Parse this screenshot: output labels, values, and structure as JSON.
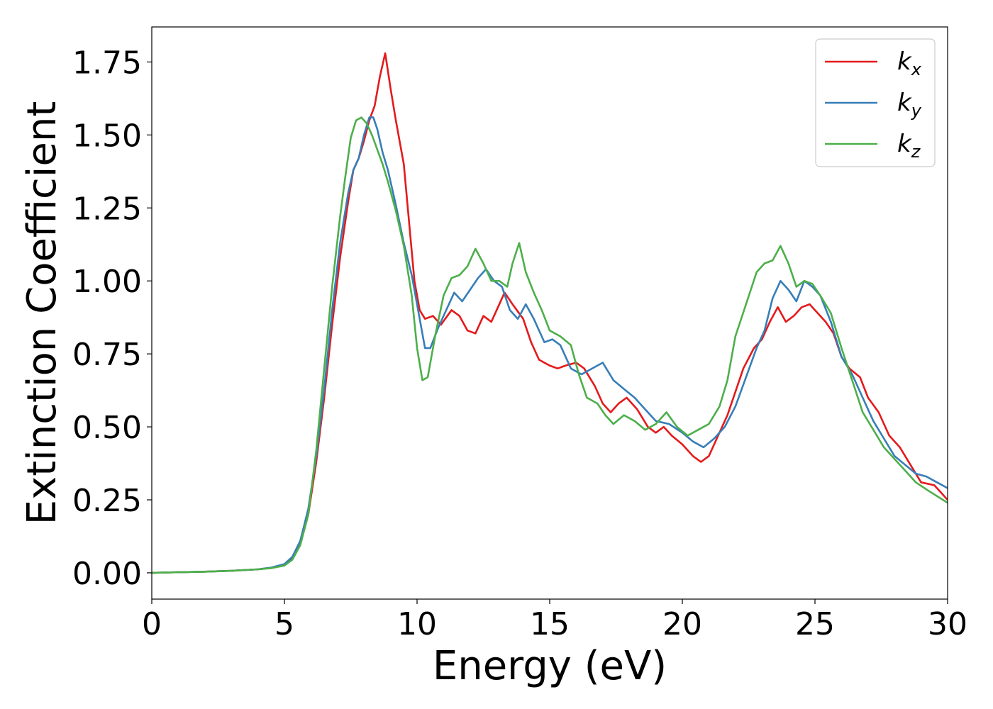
{
  "chart_data": {
    "type": "line",
    "title": "",
    "xlabel": "Energy (eV)",
    "ylabel": "Extinction Coefficient",
    "xlim": [
      0,
      30
    ],
    "ylim": [
      -0.09,
      1.87
    ],
    "xticks": [
      "0",
      "5",
      "10",
      "15",
      "20",
      "25",
      "30"
    ],
    "yticks": [
      "0.00",
      "0.25",
      "0.50",
      "0.75",
      "1.00",
      "1.25",
      "1.50",
      "1.75"
    ],
    "grid": false,
    "legend_position": "top-right",
    "series": [
      {
        "name": "k",
        "subscript": "x",
        "color": "#e41a1c",
        "points": [
          [
            0,
            0.0
          ],
          [
            1,
            0.002
          ],
          [
            2,
            0.004
          ],
          [
            3,
            0.007
          ],
          [
            4,
            0.012
          ],
          [
            4.5,
            0.017
          ],
          [
            5,
            0.028
          ],
          [
            5.3,
            0.05
          ],
          [
            5.6,
            0.1
          ],
          [
            5.9,
            0.2
          ],
          [
            6.2,
            0.38
          ],
          [
            6.5,
            0.6
          ],
          [
            6.8,
            0.85
          ],
          [
            7.1,
            1.08
          ],
          [
            7.4,
            1.27
          ],
          [
            7.6,
            1.38
          ],
          [
            7.8,
            1.42
          ],
          [
            8.0,
            1.48
          ],
          [
            8.2,
            1.55
          ],
          [
            8.4,
            1.6
          ],
          [
            8.6,
            1.7
          ],
          [
            8.8,
            1.78
          ],
          [
            9.0,
            1.66
          ],
          [
            9.2,
            1.55
          ],
          [
            9.5,
            1.4
          ],
          [
            9.7,
            1.2
          ],
          [
            9.9,
            1.0
          ],
          [
            10.1,
            0.9
          ],
          [
            10.3,
            0.87
          ],
          [
            10.6,
            0.88
          ],
          [
            10.9,
            0.85
          ],
          [
            11.3,
            0.9
          ],
          [
            11.6,
            0.88
          ],
          [
            11.9,
            0.83
          ],
          [
            12.2,
            0.82
          ],
          [
            12.5,
            0.88
          ],
          [
            12.8,
            0.86
          ],
          [
            13.0,
            0.9
          ],
          [
            13.3,
            0.96
          ],
          [
            13.6,
            0.92
          ],
          [
            14.0,
            0.87
          ],
          [
            14.3,
            0.79
          ],
          [
            14.6,
            0.73
          ],
          [
            15.0,
            0.71
          ],
          [
            15.3,
            0.7
          ],
          [
            15.6,
            0.71
          ],
          [
            16.0,
            0.72
          ],
          [
            16.3,
            0.7
          ],
          [
            16.7,
            0.64
          ],
          [
            17.0,
            0.58
          ],
          [
            17.3,
            0.55
          ],
          [
            17.6,
            0.58
          ],
          [
            17.9,
            0.6
          ],
          [
            18.3,
            0.56
          ],
          [
            18.7,
            0.5
          ],
          [
            19.0,
            0.48
          ],
          [
            19.3,
            0.5
          ],
          [
            19.6,
            0.47
          ],
          [
            20.0,
            0.44
          ],
          [
            20.4,
            0.4
          ],
          [
            20.7,
            0.38
          ],
          [
            21.0,
            0.4
          ],
          [
            21.3,
            0.46
          ],
          [
            21.7,
            0.54
          ],
          [
            22.0,
            0.62
          ],
          [
            22.3,
            0.7
          ],
          [
            22.7,
            0.77
          ],
          [
            23.0,
            0.8
          ],
          [
            23.3,
            0.86
          ],
          [
            23.6,
            0.91
          ],
          [
            23.9,
            0.86
          ],
          [
            24.2,
            0.88
          ],
          [
            24.5,
            0.91
          ],
          [
            24.8,
            0.92
          ],
          [
            25.1,
            0.89
          ],
          [
            25.4,
            0.86
          ],
          [
            25.7,
            0.82
          ],
          [
            26.0,
            0.74
          ],
          [
            26.3,
            0.7
          ],
          [
            26.7,
            0.67
          ],
          [
            27.0,
            0.6
          ],
          [
            27.4,
            0.55
          ],
          [
            27.8,
            0.47
          ],
          [
            28.2,
            0.43
          ],
          [
            28.6,
            0.37
          ],
          [
            29.0,
            0.31
          ],
          [
            29.5,
            0.3
          ],
          [
            30.0,
            0.25
          ]
        ]
      },
      {
        "name": "k",
        "subscript": "y",
        "color": "#377eb8",
        "points": [
          [
            0,
            0.0
          ],
          [
            1,
            0.002
          ],
          [
            2,
            0.004
          ],
          [
            3,
            0.007
          ],
          [
            4,
            0.012
          ],
          [
            4.5,
            0.018
          ],
          [
            5,
            0.03
          ],
          [
            5.3,
            0.055
          ],
          [
            5.6,
            0.11
          ],
          [
            5.9,
            0.22
          ],
          [
            6.2,
            0.4
          ],
          [
            6.5,
            0.63
          ],
          [
            6.8,
            0.9
          ],
          [
            7.1,
            1.13
          ],
          [
            7.4,
            1.3
          ],
          [
            7.6,
            1.38
          ],
          [
            7.8,
            1.42
          ],
          [
            8.0,
            1.5
          ],
          [
            8.2,
            1.56
          ],
          [
            8.35,
            1.56
          ],
          [
            8.5,
            1.52
          ],
          [
            8.7,
            1.44
          ],
          [
            8.9,
            1.38
          ],
          [
            9.2,
            1.26
          ],
          [
            9.5,
            1.13
          ],
          [
            9.8,
            1.02
          ],
          [
            10.1,
            0.87
          ],
          [
            10.3,
            0.77
          ],
          [
            10.5,
            0.77
          ],
          [
            10.8,
            0.84
          ],
          [
            11.1,
            0.9
          ],
          [
            11.4,
            0.96
          ],
          [
            11.7,
            0.93
          ],
          [
            12.0,
            0.97
          ],
          [
            12.3,
            1.01
          ],
          [
            12.6,
            1.04
          ],
          [
            12.9,
            1.0
          ],
          [
            13.2,
            0.98
          ],
          [
            13.5,
            0.9
          ],
          [
            13.8,
            0.87
          ],
          [
            14.1,
            0.92
          ],
          [
            14.4,
            0.87
          ],
          [
            14.8,
            0.79
          ],
          [
            15.1,
            0.8
          ],
          [
            15.4,
            0.78
          ],
          [
            15.8,
            0.7
          ],
          [
            16.2,
            0.68
          ],
          [
            16.6,
            0.7
          ],
          [
            17.0,
            0.72
          ],
          [
            17.4,
            0.66
          ],
          [
            17.8,
            0.63
          ],
          [
            18.2,
            0.6
          ],
          [
            18.6,
            0.56
          ],
          [
            19.0,
            0.52
          ],
          [
            19.5,
            0.51
          ],
          [
            20.0,
            0.48
          ],
          [
            20.4,
            0.45
          ],
          [
            20.8,
            0.43
          ],
          [
            21.2,
            0.46
          ],
          [
            21.6,
            0.5
          ],
          [
            22.0,
            0.57
          ],
          [
            22.4,
            0.67
          ],
          [
            22.8,
            0.77
          ],
          [
            23.1,
            0.83
          ],
          [
            23.4,
            0.94
          ],
          [
            23.7,
            1.0
          ],
          [
            24.0,
            0.97
          ],
          [
            24.3,
            0.93
          ],
          [
            24.6,
            1.0
          ],
          [
            24.9,
            0.98
          ],
          [
            25.2,
            0.95
          ],
          [
            25.6,
            0.86
          ],
          [
            26.0,
            0.74
          ],
          [
            26.4,
            0.68
          ],
          [
            26.8,
            0.6
          ],
          [
            27.2,
            0.52
          ],
          [
            27.6,
            0.46
          ],
          [
            28.0,
            0.4
          ],
          [
            28.4,
            0.37
          ],
          [
            28.8,
            0.34
          ],
          [
            29.2,
            0.33
          ],
          [
            29.6,
            0.31
          ],
          [
            30.0,
            0.29
          ]
        ]
      },
      {
        "name": "k",
        "subscript": "z",
        "color": "#4daf4a",
        "points": [
          [
            0,
            0.0
          ],
          [
            1,
            0.002
          ],
          [
            2,
            0.004
          ],
          [
            3,
            0.007
          ],
          [
            4,
            0.012
          ],
          [
            4.5,
            0.016
          ],
          [
            5,
            0.025
          ],
          [
            5.3,
            0.045
          ],
          [
            5.6,
            0.095
          ],
          [
            5.9,
            0.2
          ],
          [
            6.2,
            0.42
          ],
          [
            6.5,
            0.7
          ],
          [
            6.8,
            0.98
          ],
          [
            7.1,
            1.22
          ],
          [
            7.3,
            1.36
          ],
          [
            7.5,
            1.49
          ],
          [
            7.7,
            1.55
          ],
          [
            7.9,
            1.56
          ],
          [
            8.1,
            1.54
          ],
          [
            8.3,
            1.5
          ],
          [
            8.5,
            1.45
          ],
          [
            8.7,
            1.4
          ],
          [
            8.9,
            1.34
          ],
          [
            9.2,
            1.24
          ],
          [
            9.5,
            1.12
          ],
          [
            9.8,
            0.95
          ],
          [
            10.0,
            0.77
          ],
          [
            10.2,
            0.66
          ],
          [
            10.4,
            0.67
          ],
          [
            10.7,
            0.82
          ],
          [
            11.0,
            0.95
          ],
          [
            11.3,
            1.01
          ],
          [
            11.6,
            1.02
          ],
          [
            11.9,
            1.05
          ],
          [
            12.2,
            1.11
          ],
          [
            12.5,
            1.06
          ],
          [
            12.8,
            1.0
          ],
          [
            13.1,
            1.0
          ],
          [
            13.4,
            0.98
          ],
          [
            13.6,
            1.06
          ],
          [
            13.85,
            1.13
          ],
          [
            14.1,
            1.03
          ],
          [
            14.4,
            0.96
          ],
          [
            14.7,
            0.9
          ],
          [
            15.0,
            0.83
          ],
          [
            15.4,
            0.81
          ],
          [
            15.8,
            0.78
          ],
          [
            16.1,
            0.68
          ],
          [
            16.4,
            0.6
          ],
          [
            16.8,
            0.58
          ],
          [
            17.1,
            0.54
          ],
          [
            17.4,
            0.51
          ],
          [
            17.8,
            0.54
          ],
          [
            18.2,
            0.52
          ],
          [
            18.6,
            0.49
          ],
          [
            19.0,
            0.51
          ],
          [
            19.4,
            0.55
          ],
          [
            19.8,
            0.5
          ],
          [
            20.2,
            0.47
          ],
          [
            20.6,
            0.49
          ],
          [
            21.0,
            0.51
          ],
          [
            21.4,
            0.57
          ],
          [
            21.7,
            0.66
          ],
          [
            22.0,
            0.81
          ],
          [
            22.4,
            0.92
          ],
          [
            22.8,
            1.03
          ],
          [
            23.1,
            1.06
          ],
          [
            23.4,
            1.07
          ],
          [
            23.7,
            1.12
          ],
          [
            24.0,
            1.06
          ],
          [
            24.3,
            0.98
          ],
          [
            24.6,
            1.0
          ],
          [
            24.9,
            0.99
          ],
          [
            25.2,
            0.95
          ],
          [
            25.6,
            0.89
          ],
          [
            26.0,
            0.77
          ],
          [
            26.4,
            0.66
          ],
          [
            26.8,
            0.55
          ],
          [
            27.2,
            0.49
          ],
          [
            27.6,
            0.43
          ],
          [
            28.0,
            0.39
          ],
          [
            28.4,
            0.35
          ],
          [
            28.8,
            0.31
          ],
          [
            29.3,
            0.28
          ],
          [
            30.0,
            0.24
          ]
        ]
      }
    ]
  }
}
